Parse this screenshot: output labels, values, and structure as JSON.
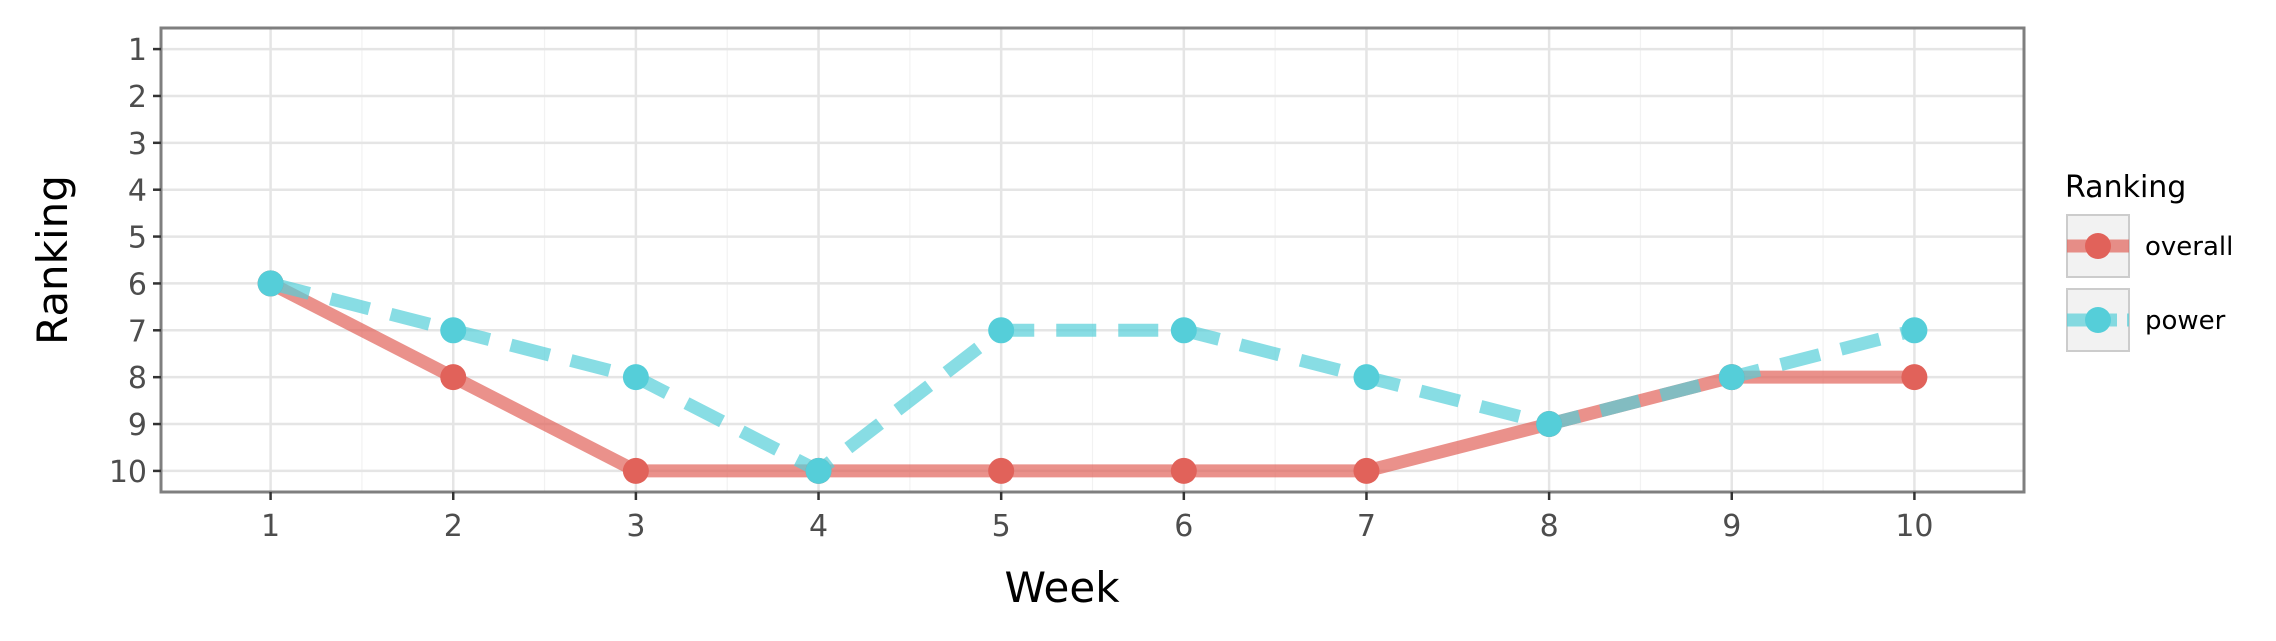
{
  "chart_data": {
    "type": "line",
    "xlabel": "Week",
    "ylabel": "Ranking",
    "x": [
      1,
      2,
      3,
      4,
      5,
      6,
      7,
      8,
      9,
      10
    ],
    "x_ticks": [
      "1",
      "2",
      "3",
      "4",
      "5",
      "6",
      "7",
      "8",
      "9",
      "10"
    ],
    "y_ticks": [
      "1",
      "2",
      "3",
      "4",
      "5",
      "6",
      "7",
      "8",
      "9",
      "10"
    ],
    "xlim": [
      0.4,
      10.6
    ],
    "ylim": [
      10.45,
      0.55
    ],
    "y_reversed": true,
    "grid": true,
    "legend": {
      "title": "Ranking",
      "position": "right"
    },
    "series": [
      {
        "name": "overall",
        "values": [
          6,
          8,
          10,
          10,
          10,
          10,
          10,
          9,
          8,
          8
        ],
        "color": "#E1625A",
        "line_style": "solid"
      },
      {
        "name": "power",
        "values": [
          6,
          7,
          8,
          10,
          7,
          7,
          8,
          9,
          8,
          7
        ],
        "color": "#55CED9",
        "line_style": "dashed"
      }
    ]
  }
}
